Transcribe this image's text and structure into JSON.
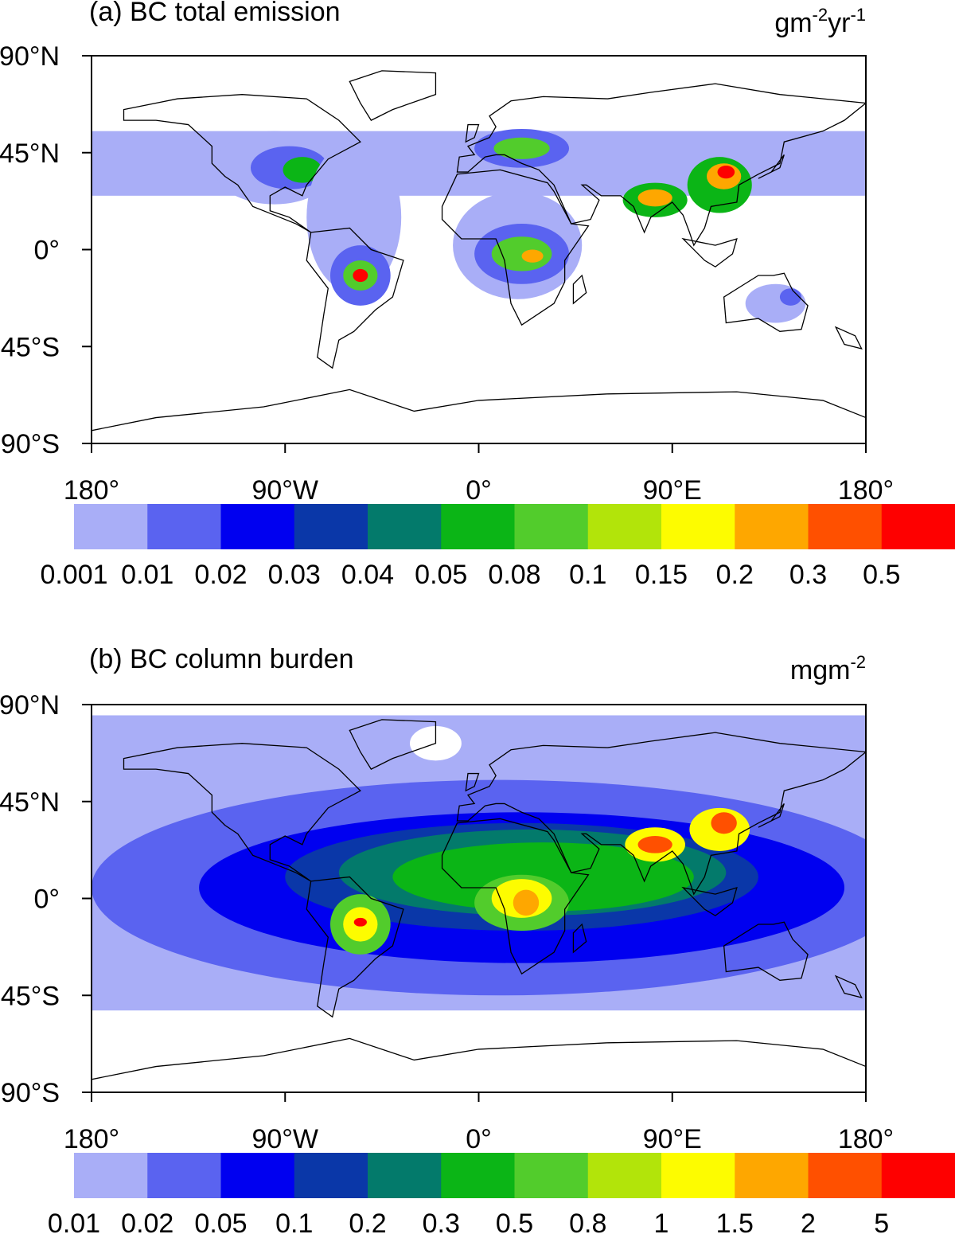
{
  "panels": [
    {
      "title": "(a) BC total emission",
      "units": [
        "gm",
        "-2",
        "yr",
        "-1"
      ],
      "lat_ticks": [
        {
          "value": 90,
          "label": "90°N"
        },
        {
          "value": 45,
          "label": "45°N"
        },
        {
          "value": 0,
          "label": "0°"
        },
        {
          "value": -45,
          "label": "45°S"
        },
        {
          "value": -90,
          "label": "90°S"
        }
      ],
      "lon_ticks": [
        {
          "value": -180,
          "label": "180°"
        },
        {
          "value": -90,
          "label": "90°W"
        },
        {
          "value": 0,
          "label": "0°"
        },
        {
          "value": 90,
          "label": "90°E"
        },
        {
          "value": 180,
          "label": "180°"
        }
      ],
      "colorbar": {
        "levels": [
          0.001,
          0.01,
          0.02,
          0.03,
          0.04,
          0.05,
          0.08,
          0.1,
          0.15,
          0.2,
          0.3,
          0.5
        ],
        "colors": [
          "#a9aef7",
          "#5a63f0",
          "#0000f0",
          "#0a37a8",
          "#037a6b",
          "#0bb516",
          "#52cc2c",
          "#b2e40a",
          "#fdfc00",
          "#fea700",
          "#ff5000",
          "#fe0000"
        ]
      }
    },
    {
      "title": "(b) BC column burden",
      "units": [
        "mgm",
        "-2"
      ],
      "lat_ticks": [
        {
          "value": 90,
          "label": "90°N"
        },
        {
          "value": 45,
          "label": "45°N"
        },
        {
          "value": 0,
          "label": "0°"
        },
        {
          "value": -45,
          "label": "45°S"
        },
        {
          "value": -90,
          "label": "90°S"
        }
      ],
      "lon_ticks": [
        {
          "value": -180,
          "label": "180°"
        },
        {
          "value": -90,
          "label": "90°W"
        },
        {
          "value": 0,
          "label": "0°"
        },
        {
          "value": 90,
          "label": "90°E"
        },
        {
          "value": 180,
          "label": "180°"
        }
      ],
      "colorbar": {
        "levels": [
          0.01,
          0.02,
          0.05,
          0.1,
          0.2,
          0.3,
          0.5,
          0.8,
          1,
          1.5,
          2,
          5
        ],
        "colors": [
          "#a9aef7",
          "#5a63f0",
          "#0000f0",
          "#0a37a8",
          "#037a6b",
          "#0bb516",
          "#52cc2c",
          "#b2e40a",
          "#fdfc00",
          "#fea700",
          "#ff5000",
          "#fe0000"
        ]
      }
    }
  ]
}
